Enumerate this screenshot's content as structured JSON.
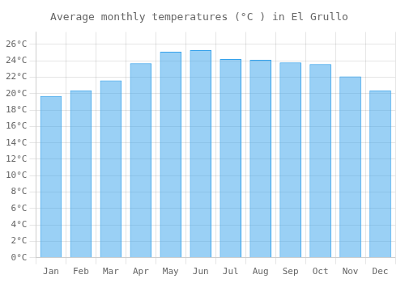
{
  "chart_data": {
    "type": "bar",
    "title": "Average monthly temperatures (°C ) in El Grullo",
    "categories": [
      "Jan",
      "Feb",
      "Mar",
      "Apr",
      "May",
      "Jun",
      "Jul",
      "Aug",
      "Sep",
      "Oct",
      "Nov",
      "Dec"
    ],
    "values": [
      19.7,
      20.4,
      21.6,
      23.7,
      25.1,
      25.3,
      24.2,
      24.1,
      23.8,
      23.6,
      22.1,
      20.4
    ],
    "ylim": [
      0,
      27.5
    ],
    "yticks": [
      {
        "value": 0,
        "label": "0°C"
      },
      {
        "value": 2,
        "label": "2°C"
      },
      {
        "value": 4,
        "label": "4°C"
      },
      {
        "value": 6,
        "label": "6°C"
      },
      {
        "value": 8,
        "label": "8°C"
      },
      {
        "value": 10,
        "label": "10°C"
      },
      {
        "value": 12,
        "label": "12°C"
      },
      {
        "value": 14,
        "label": "14°C"
      },
      {
        "value": 16,
        "label": "16°C"
      },
      {
        "value": 18,
        "label": "18°C"
      },
      {
        "value": 20,
        "label": "20°C"
      },
      {
        "value": 22,
        "label": "22°C"
      },
      {
        "value": 24,
        "label": "24°C"
      },
      {
        "value": 26,
        "label": "26°C"
      }
    ],
    "grid": true
  }
}
